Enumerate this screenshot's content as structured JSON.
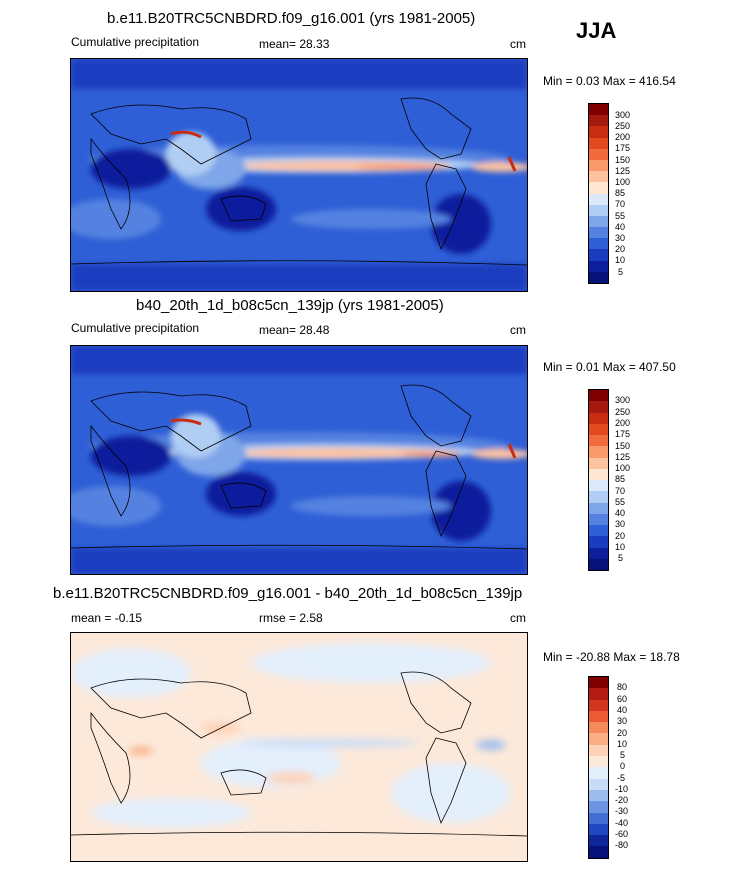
{
  "season": "JJA",
  "panels": [
    {
      "title": "b.e11.B20TRC5CNBDRD.f09_g16.001 (yrs 1981-2005)",
      "left_label": "Cumulative precipitation",
      "stat_label": "mean=  28.33",
      "units": "cm",
      "minmax": "Min =   0.03 Max = 416.54",
      "colorbar_labels": [
        "300",
        "250",
        "200",
        "175",
        "150",
        "125",
        "100",
        "85",
        "70",
        "55",
        "40",
        "30",
        "20",
        "10",
        "5"
      ]
    },
    {
      "title": "b40_20th_1d_b08c5cn_139jp (yrs 1981-2005)",
      "left_label": "Cumulative precipitation",
      "stat_label": "mean=  28.48",
      "units": "cm",
      "minmax": "Min =   0.01 Max = 407.50",
      "colorbar_labels": [
        "300",
        "250",
        "200",
        "175",
        "150",
        "125",
        "100",
        "85",
        "70",
        "55",
        "40",
        "30",
        "20",
        "10",
        "5"
      ]
    },
    {
      "title": "b.e11.B20TRC5CNBDRD.f09_g16.001 - b40_20th_1d_b08c5cn_139jp",
      "left_label": "mean =  -0.15",
      "stat_label": "rmse =   2.58",
      "units": "cm",
      "minmax": "Min = -20.88 Max =  18.78",
      "colorbar_labels": [
        "80",
        "60",
        "40",
        "30",
        "20",
        "10",
        "5",
        "0",
        "-5",
        "-10",
        "-20",
        "-30",
        "-40",
        "-60",
        "-80"
      ]
    }
  ],
  "colors": {
    "precip": [
      "#7f0000",
      "#a51a0e",
      "#c82d13",
      "#e34a1f",
      "#f26b3c",
      "#f99a6c",
      "#fdc2a0",
      "#fde6d2",
      "#dbe9fb",
      "#b0cdf3",
      "#7fa6e9",
      "#5582e0",
      "#2f5fd6",
      "#1a3dbf",
      "#0d1f9c",
      "#061277"
    ],
    "anomaly": [
      "#7f0000",
      "#b21a12",
      "#d2361f",
      "#eb5a35",
      "#f58a5d",
      "#faae86",
      "#fdd2b6",
      "#fde9da",
      "#e4effc",
      "#c8dcf7",
      "#9dbdef",
      "#6e95e3",
      "#4470d6",
      "#2148c0",
      "#0e2698",
      "#061277"
    ],
    "land_line": "#000000"
  }
}
